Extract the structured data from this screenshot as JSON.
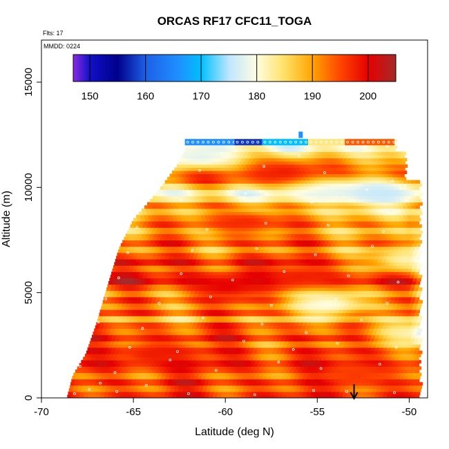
{
  "chart_data": {
    "type": "heatmap",
    "title": "ORCAS RF17 CFC11_TOGA",
    "annotations": {
      "flights": "Flts: 17",
      "date": "MMDD: 0224"
    },
    "xlabel": "Latitude (deg N)",
    "ylabel": "Altitude (m)",
    "xlim": [
      -70,
      -49
    ],
    "ylim": [
      0,
      17000
    ],
    "x_ticks": [
      {
        "value": -70,
        "label": "-70"
      },
      {
        "value": -65,
        "label": "-65"
      },
      {
        "value": -60,
        "label": "-60"
      },
      {
        "value": -55,
        "label": "-55"
      },
      {
        "value": -50,
        "label": "-50"
      }
    ],
    "y_ticks": [
      {
        "value": 0,
        "label": "0"
      },
      {
        "value": 5000,
        "label": "5000"
      },
      {
        "value": 10000,
        "label": "10000"
      },
      {
        "value": 15000,
        "label": "15000"
      }
    ],
    "colorbar": {
      "range": [
        147,
        205
      ],
      "ticks": [
        {
          "value": 150,
          "label": "150"
        },
        {
          "value": 160,
          "label": "160"
        },
        {
          "value": 170,
          "label": "170"
        },
        {
          "value": 180,
          "label": "180"
        },
        {
          "value": 190,
          "label": "190"
        },
        {
          "value": 200,
          "label": "200"
        }
      ],
      "stops": [
        {
          "value": 147,
          "color": "#8a2be2"
        },
        {
          "value": 150,
          "color": "#1010c8"
        },
        {
          "value": 155,
          "color": "#00008b"
        },
        {
          "value": 160,
          "color": "#1e5fe6"
        },
        {
          "value": 166,
          "color": "#1e90ff"
        },
        {
          "value": 170,
          "color": "#00bfff"
        },
        {
          "value": 175,
          "color": "#bfe6ff"
        },
        {
          "value": 180,
          "color": "#fffde0"
        },
        {
          "value": 185,
          "color": "#ffe066"
        },
        {
          "value": 190,
          "color": "#ffa500"
        },
        {
          "value": 195,
          "color": "#ff4500"
        },
        {
          "value": 200,
          "color": "#e60000"
        },
        {
          "value": 205,
          "color": "#a52a2a"
        }
      ]
    },
    "data_extent": {
      "boundary": [
        {
          "lat": -68.6,
          "alt": 0
        },
        {
          "lat": -68.3,
          "alt": 1000
        },
        {
          "lat": -67.6,
          "alt": 2000
        },
        {
          "lat": -67.0,
          "alt": 3500
        },
        {
          "lat": -66.5,
          "alt": 5000
        },
        {
          "lat": -65.8,
          "alt": 7000
        },
        {
          "lat": -65.0,
          "alt": 8400
        },
        {
          "lat": -63.8,
          "alt": 9600
        },
        {
          "lat": -62.6,
          "alt": 11000
        },
        {
          "lat": -61.9,
          "alt": 12200
        }
      ],
      "top_alt": 12200,
      "right_lat": -49.5
    },
    "layers": [
      {
        "alt": 200,
        "value": 197
      },
      {
        "alt": 500,
        "value": 193
      },
      {
        "alt": 800,
        "value": 198
      },
      {
        "alt": 1100,
        "value": 192
      },
      {
        "alt": 1400,
        "value": 196
      },
      {
        "alt": 1700,
        "value": 199
      },
      {
        "alt": 2000,
        "value": 194
      },
      {
        "alt": 2300,
        "value": 197
      },
      {
        "alt": 2600,
        "value": 191
      },
      {
        "alt": 2900,
        "value": 198
      },
      {
        "alt": 3200,
        "value": 193
      },
      {
        "alt": 3500,
        "value": 195
      },
      {
        "alt": 3800,
        "value": 187
      },
      {
        "alt": 4100,
        "value": 196
      },
      {
        "alt": 4400,
        "value": 190
      },
      {
        "alt": 4700,
        "value": 195
      },
      {
        "alt": 5000,
        "value": 188
      },
      {
        "alt": 5300,
        "value": 193
      },
      {
        "alt": 5600,
        "value": 200
      },
      {
        "alt": 5900,
        "value": 197
      },
      {
        "alt": 6200,
        "value": 192
      },
      {
        "alt": 6500,
        "value": 199
      },
      {
        "alt": 6800,
        "value": 194
      },
      {
        "alt": 7100,
        "value": 189
      },
      {
        "alt": 7400,
        "value": 196
      },
      {
        "alt": 7700,
        "value": 191
      },
      {
        "alt": 8000,
        "value": 187
      },
      {
        "alt": 8300,
        "value": 193
      },
      {
        "alt": 8600,
        "value": 189
      },
      {
        "alt": 8900,
        "value": 185
      },
      {
        "alt": 9200,
        "value": 191
      },
      {
        "alt": 9500,
        "value": 183
      },
      {
        "alt": 9800,
        "value": 180
      },
      {
        "alt": 10100,
        "value": 186
      },
      {
        "alt": 10400,
        "value": 194
      },
      {
        "alt": 10700,
        "value": 196
      },
      {
        "alt": 11000,
        "value": 192
      },
      {
        "alt": 11300,
        "value": 188
      },
      {
        "alt": 11600,
        "value": 184
      },
      {
        "alt": 11900,
        "value": 180
      }
    ],
    "features": [
      {
        "lat": -60.0,
        "alt": 5200,
        "value": 200
      },
      {
        "lat": -56.0,
        "alt": 5600,
        "value": 198
      },
      {
        "lat": -54.5,
        "alt": 4400,
        "value": 180
      },
      {
        "lat": -55.0,
        "alt": 9900,
        "value": 178
      },
      {
        "lat": -52.0,
        "alt": 9700,
        "value": 176
      },
      {
        "lat": -57.0,
        "alt": 10700,
        "value": 198
      },
      {
        "lat": -50.3,
        "alt": 6500,
        "value": 182
      },
      {
        "lat": -50.0,
        "alt": 3000,
        "value": 182
      },
      {
        "lat": -61.5,
        "alt": 11400,
        "value": 178
      },
      {
        "lat": -59.0,
        "alt": 8300,
        "value": 197
      },
      {
        "lat": -53.0,
        "alt": 1000,
        "value": 196
      },
      {
        "lat": -64.0,
        "alt": 2000,
        "value": 198
      }
    ],
    "top_track": {
      "alt": 12150,
      "segments": [
        {
          "lat_from": -62.2,
          "lat_to": -59.5,
          "value": 166
        },
        {
          "lat_from": -59.5,
          "lat_to": -58.0,
          "value": 158
        },
        {
          "lat_from": -58.0,
          "lat_to": -55.5,
          "value": 170
        },
        {
          "lat_from": -55.5,
          "lat_to": -53.5,
          "value": 184
        },
        {
          "lat_from": -53.5,
          "lat_to": -50.8,
          "value": 194
        }
      ],
      "marker": {
        "lat": -55.9,
        "alt": 12500,
        "value": 166
      }
    },
    "sample_points": [
      {
        "lat": -68.2,
        "alt": 200
      },
      {
        "lat": -67.4,
        "alt": 400
      },
      {
        "lat": -66.8,
        "alt": 700
      },
      {
        "lat": -65.9,
        "alt": 300
      },
      {
        "lat": -64.3,
        "alt": 600
      },
      {
        "lat": -62.0,
        "alt": 200
      },
      {
        "lat": -58.4,
        "alt": 150
      },
      {
        "lat": -55.2,
        "alt": 350
      },
      {
        "lat": -53.4,
        "alt": 300
      },
      {
        "lat": -50.8,
        "alt": 250
      },
      {
        "lat": -67.9,
        "alt": 1500
      },
      {
        "lat": -66.0,
        "alt": 1200
      },
      {
        "lat": -63.0,
        "alt": 1800
      },
      {
        "lat": -60.5,
        "alt": 1300
      },
      {
        "lat": -57.1,
        "alt": 1700
      },
      {
        "lat": -54.8,
        "alt": 1400
      },
      {
        "lat": -51.6,
        "alt": 1600
      },
      {
        "lat": -67.5,
        "alt": 2600
      },
      {
        "lat": -65.2,
        "alt": 2400
      },
      {
        "lat": -62.6,
        "alt": 2200
      },
      {
        "lat": -59.0,
        "alt": 2700
      },
      {
        "lat": -56.3,
        "alt": 2300
      },
      {
        "lat": -53.9,
        "alt": 2600
      },
      {
        "lat": -50.7,
        "alt": 2400
      },
      {
        "lat": -66.9,
        "alt": 3600
      },
      {
        "lat": -64.5,
        "alt": 3300
      },
      {
        "lat": -61.2,
        "alt": 3800
      },
      {
        "lat": -58.0,
        "alt": 3500
      },
      {
        "lat": -55.6,
        "alt": 3100
      },
      {
        "lat": -52.6,
        "alt": 3700
      },
      {
        "lat": -66.5,
        "alt": 4700
      },
      {
        "lat": -63.6,
        "alt": 4500
      },
      {
        "lat": -60.8,
        "alt": 4800
      },
      {
        "lat": -57.5,
        "alt": 4400
      },
      {
        "lat": -54.0,
        "alt": 4700
      },
      {
        "lat": -51.2,
        "alt": 4500
      },
      {
        "lat": -65.8,
        "alt": 5700
      },
      {
        "lat": -62.4,
        "alt": 5900
      },
      {
        "lat": -59.6,
        "alt": 5600
      },
      {
        "lat": -56.8,
        "alt": 6000
      },
      {
        "lat": -53.3,
        "alt": 5800
      },
      {
        "lat": -50.6,
        "alt": 5500
      },
      {
        "lat": -65.3,
        "alt": 6900
      },
      {
        "lat": -61.8,
        "alt": 7000
      },
      {
        "lat": -58.3,
        "alt": 7100
      },
      {
        "lat": -55.1,
        "alt": 6800
      },
      {
        "lat": -52.0,
        "alt": 7200
      },
      {
        "lat": -64.8,
        "alt": 8100
      },
      {
        "lat": -61.0,
        "alt": 8000
      },
      {
        "lat": -57.8,
        "alt": 8300
      },
      {
        "lat": -54.4,
        "alt": 8200
      },
      {
        "lat": -51.4,
        "alt": 7900
      },
      {
        "lat": -62.4,
        "alt": 9400
      },
      {
        "lat": -58.9,
        "alt": 9700
      },
      {
        "lat": -55.3,
        "alt": 9300
      },
      {
        "lat": -52.3,
        "alt": 9900
      },
      {
        "lat": -61.4,
        "alt": 10800
      },
      {
        "lat": -57.9,
        "alt": 11000
      },
      {
        "lat": -54.6,
        "alt": 10700
      },
      {
        "lat": -50.9,
        "alt": 10300
      },
      {
        "lat": -60.2,
        "alt": 11600
      },
      {
        "lat": -56.0,
        "alt": 11500
      },
      {
        "lat": -52.4,
        "alt": 11950
      },
      {
        "lat": -51.2,
        "alt": 11950
      },
      {
        "lat": -50.2,
        "alt": 10100
      }
    ],
    "arrow": {
      "lat": -53.0,
      "alt_from": 650,
      "alt_to": 0
    }
  }
}
